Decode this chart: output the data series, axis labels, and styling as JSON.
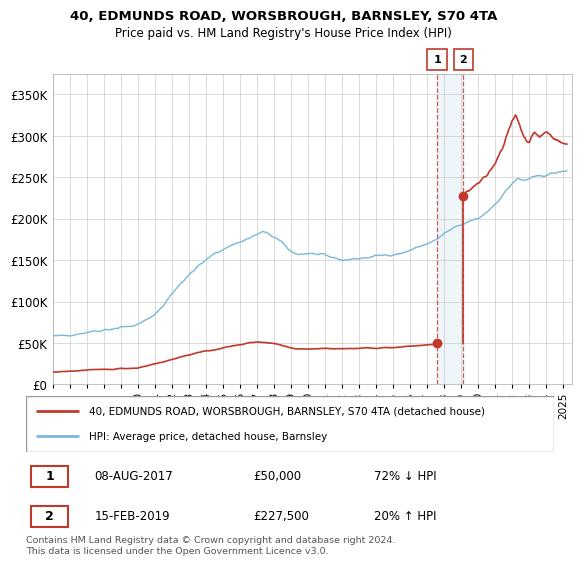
{
  "title": "40, EDMUNDS ROAD, WORSBROUGH, BARNSLEY, S70 4TA",
  "subtitle": "Price paid vs. HM Land Registry's House Price Index (HPI)",
  "legend_line1": "40, EDMUNDS ROAD, WORSBROUGH, BARNSLEY, S70 4TA (detached house)",
  "legend_line2": "HPI: Average price, detached house, Barnsley",
  "transaction1_date": "08-AUG-2017",
  "transaction1_price": "£50,000",
  "transaction1_hpi": "72% ↓ HPI",
  "transaction2_date": "15-FEB-2019",
  "transaction2_price": "£227,500",
  "transaction2_hpi": "20% ↑ HPI",
  "footer": "Contains HM Land Registry data © Crown copyright and database right 2024.\nThis data is licensed under the Open Government Licence v3.0.",
  "hpi_color": "#7ab8d9",
  "price_color": "#c0392b",
  "background_color": "#ffffff",
  "plot_bg_color": "#ffffff",
  "grid_color": "#cccccc",
  "ylim": [
    0,
    375000
  ],
  "yticks": [
    0,
    50000,
    100000,
    150000,
    200000,
    250000,
    300000,
    350000
  ],
  "t1_x": 2017.58,
  "t1_y": 50000,
  "t2_x": 2019.12,
  "t2_y": 227500,
  "xmin": 1995.0,
  "xmax": 2025.5
}
